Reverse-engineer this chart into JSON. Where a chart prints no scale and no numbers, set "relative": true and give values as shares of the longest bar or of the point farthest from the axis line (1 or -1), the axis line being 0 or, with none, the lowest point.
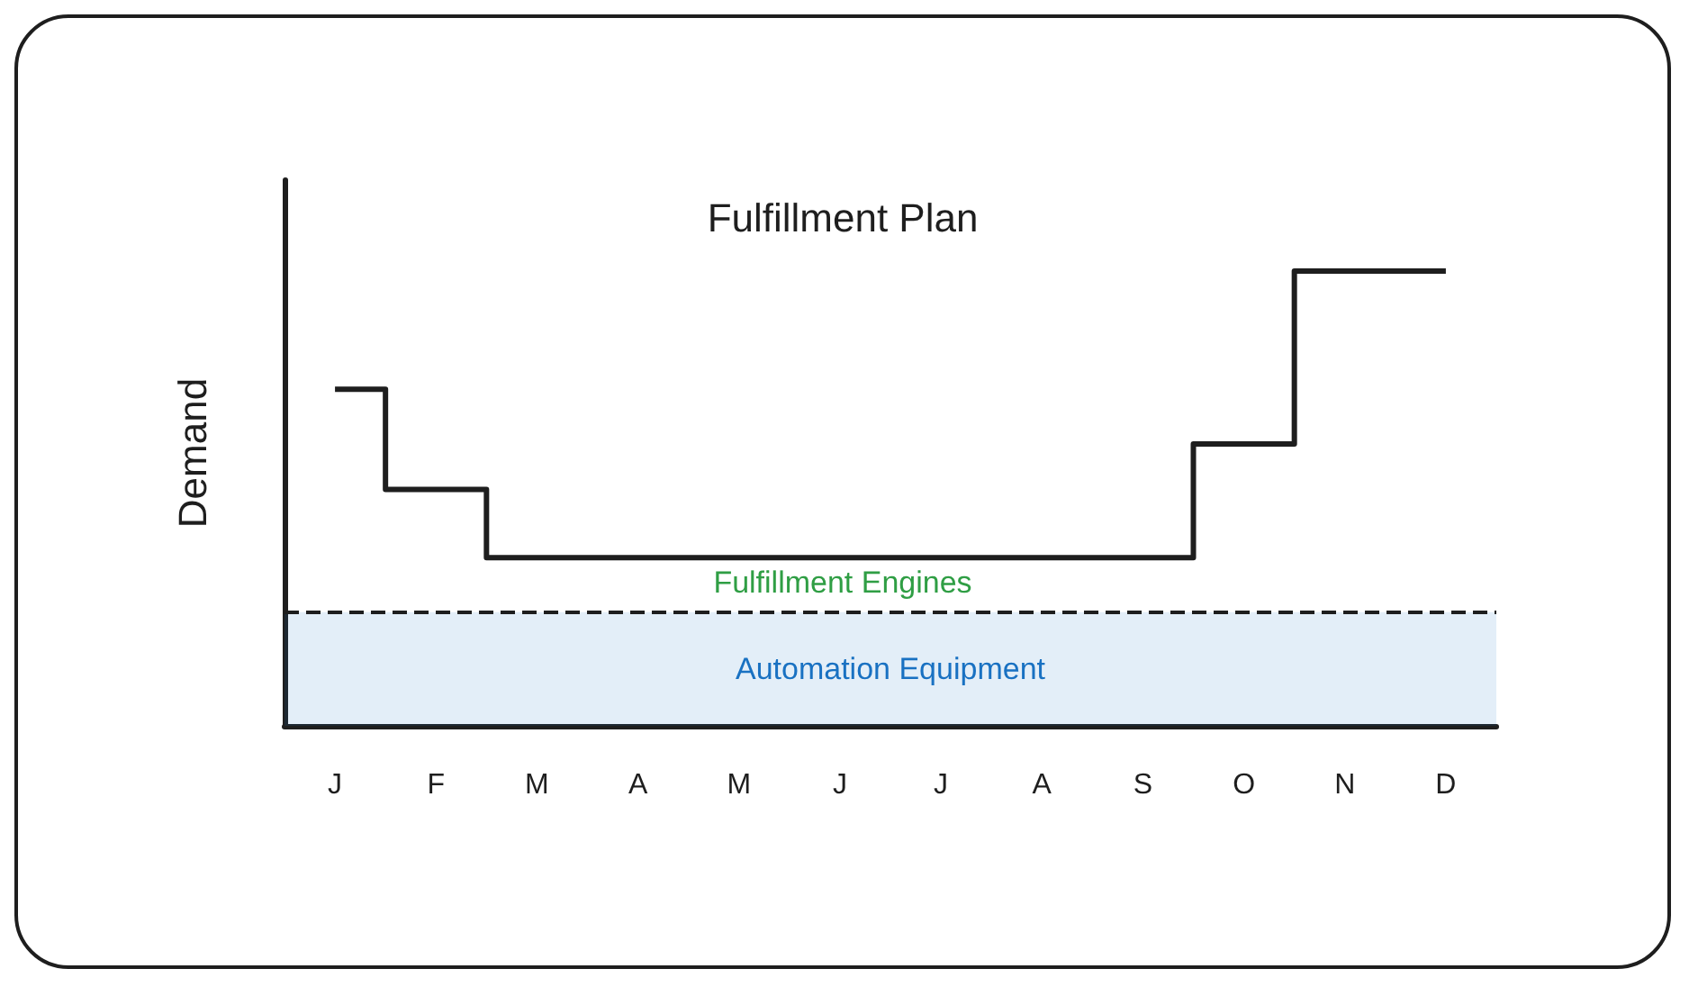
{
  "chart_data": {
    "type": "step",
    "title": "Fulfillment Plan",
    "ylabel": "Demand",
    "relative": true,
    "categories": [
      "J",
      "F",
      "M",
      "A",
      "M",
      "J",
      "J",
      "A",
      "S",
      "O",
      "N",
      "D"
    ],
    "series": [
      {
        "color": "#1e1e1e",
        "values": [
          0.74,
          0.52,
          0.37,
          0.37,
          0.37,
          0.37,
          0.37,
          0.37,
          0.37,
          0.62,
          1,
          1
        ]
      }
    ],
    "ref_lines": [
      {
        "axis": "y",
        "value": 0.25,
        "color": "#1e1e1e",
        "line_style": "dashed"
      }
    ],
    "bands": [
      {
        "axis": "y",
        "from": 0,
        "to": 0.25,
        "label": "Automation Equipment",
        "color": "#1971c2"
      }
    ],
    "annotations": [
      "Fulfillment Engines"
    ],
    "grid": false
  }
}
